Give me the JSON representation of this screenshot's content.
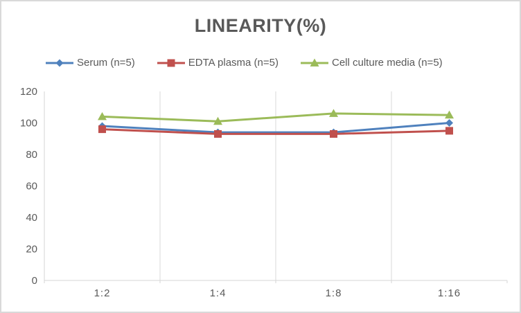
{
  "chart_data": {
    "type": "line",
    "title": "LINEARITY(%)",
    "categories": [
      "1:2",
      "1:4",
      "1:8",
      "1:16"
    ],
    "series": [
      {
        "name": "Serum (n=5)",
        "marker": "diamond",
        "color": "#4F81BD",
        "values": [
          98,
          94,
          94,
          100
        ]
      },
      {
        "name": "EDTA plasma (n=5)",
        "marker": "square",
        "color": "#C0504D",
        "values": [
          96,
          93,
          93,
          95
        ]
      },
      {
        "name": "Cell culture media (n=5)",
        "marker": "triangle",
        "color": "#9BBB59",
        "values": [
          104,
          101,
          106,
          105
        ]
      }
    ],
    "xlabel": "",
    "ylabel": "",
    "ylim": [
      0,
      120
    ],
    "ytick_step": 20,
    "yticks": [
      0,
      20,
      40,
      60,
      80,
      100,
      120
    ],
    "grid": "vertical-between-categories-only",
    "legend_position": "top",
    "colors": {
      "axis_line": "#d6d6d6",
      "grid_line": "#d9d9d9",
      "tick_text": "#595959",
      "title_text": "#595959",
      "background": "#ffffff",
      "frame_border": "#d9d9d9"
    }
  }
}
